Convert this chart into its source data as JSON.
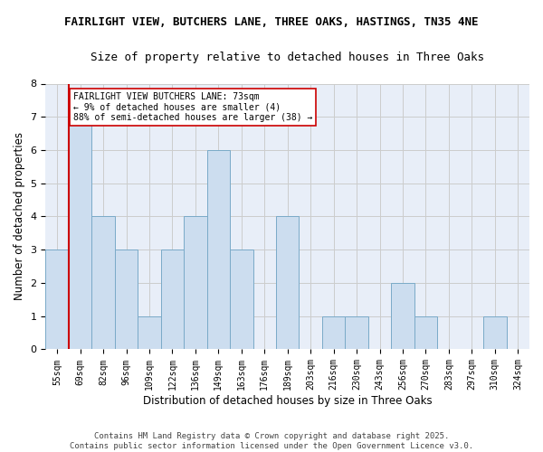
{
  "title_line1": "FAIRLIGHT VIEW, BUTCHERS LANE, THREE OAKS, HASTINGS, TN35 4NE",
  "title_line2": "Size of property relative to detached houses in Three Oaks",
  "xlabel": "Distribution of detached houses by size in Three Oaks",
  "ylabel": "Number of detached properties",
  "categories": [
    "55sqm",
    "69sqm",
    "82sqm",
    "96sqm",
    "109sqm",
    "122sqm",
    "136sqm",
    "149sqm",
    "163sqm",
    "176sqm",
    "189sqm",
    "203sqm",
    "216sqm",
    "230sqm",
    "243sqm",
    "256sqm",
    "270sqm",
    "283sqm",
    "297sqm",
    "310sqm",
    "324sqm"
  ],
  "values": [
    3,
    7,
    4,
    3,
    1,
    3,
    4,
    6,
    3,
    0,
    4,
    0,
    1,
    1,
    0,
    2,
    1,
    0,
    0,
    1,
    0
  ],
  "bar_color": "#ccddef",
  "bar_edge_color": "#7aaac8",
  "red_line_index": 1,
  "annotation_text": "FAIRLIGHT VIEW BUTCHERS LANE: 73sqm\n← 9% of detached houses are smaller (4)\n88% of semi-detached houses are larger (38) →",
  "annotation_box_color": "#ffffff",
  "annotation_box_edge": "#cc0000",
  "grid_color": "#cccccc",
  "background_color": "#e8eef8",
  "ylim": [
    0,
    8
  ],
  "yticks": [
    0,
    1,
    2,
    3,
    4,
    5,
    6,
    7,
    8
  ],
  "footer_line1": "Contains HM Land Registry data © Crown copyright and database right 2025.",
  "footer_line2": "Contains public sector information licensed under the Open Government Licence v3.0."
}
